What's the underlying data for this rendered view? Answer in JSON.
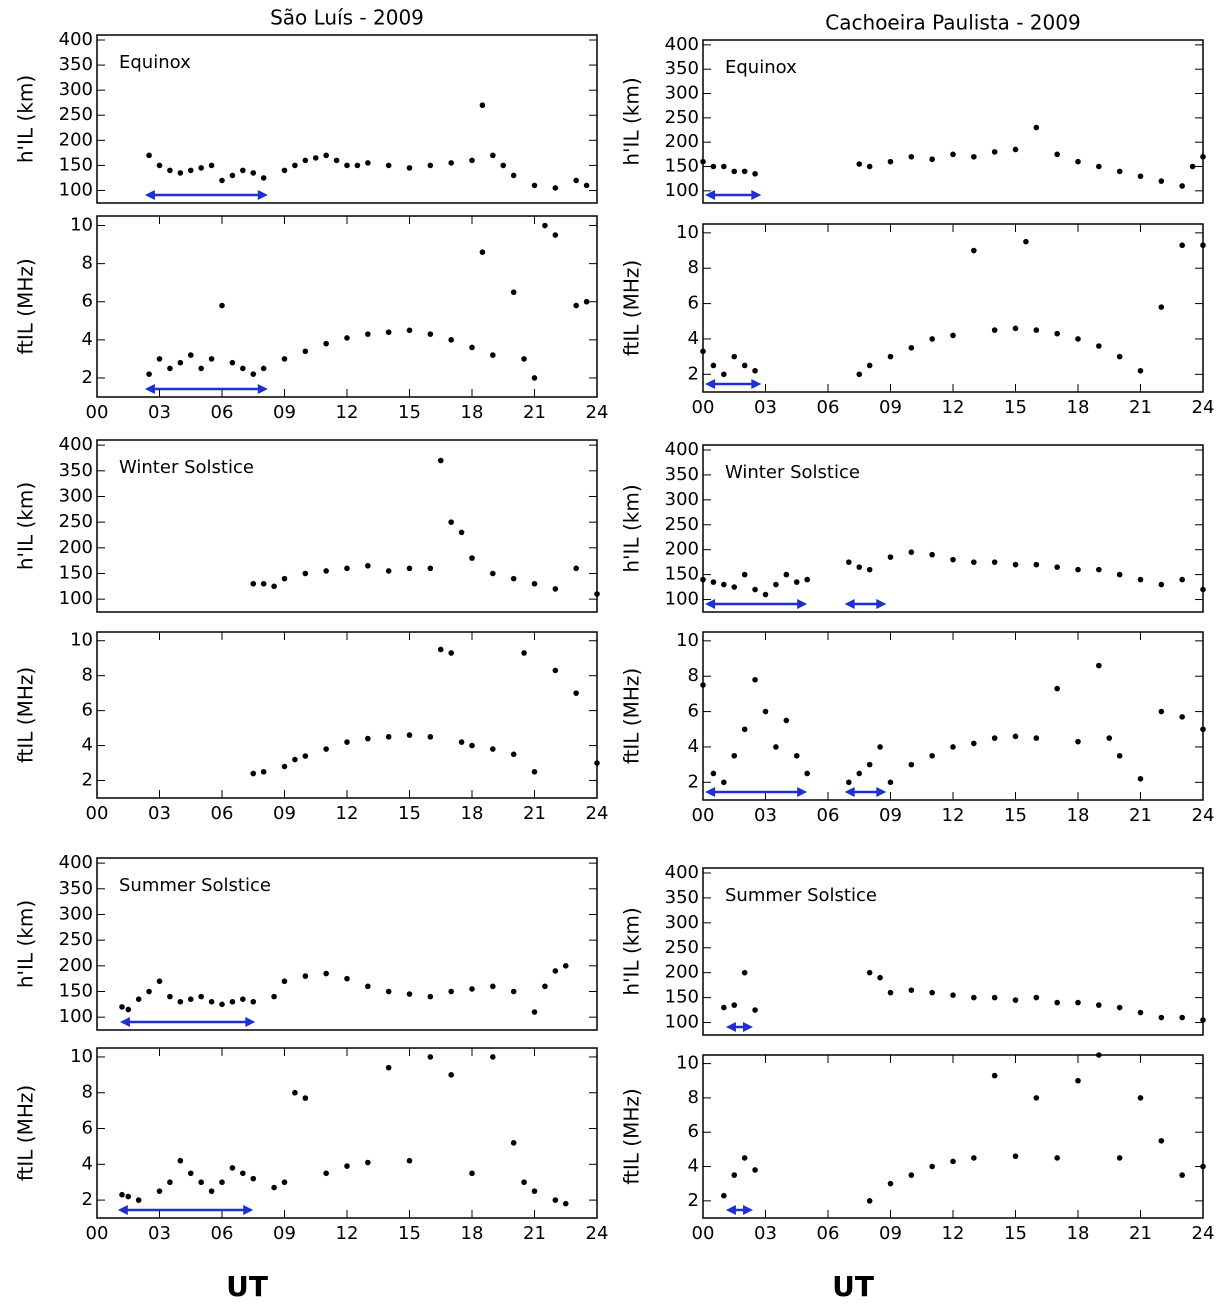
{
  "chart_data": [
    {
      "type": "scatter",
      "title": "São Luís - 2009",
      "ylabel": "h'IL (km)",
      "annotation": "Equinox",
      "x": [
        2.5,
        3,
        3.5,
        4,
        4.5,
        5,
        5.5,
        6,
        6.5,
        7,
        7.5,
        8,
        9,
        9.5,
        10,
        10.5,
        11,
        11.5,
        12,
        12.5,
        13,
        14,
        15,
        16,
        17,
        18,
        18.5,
        19,
        19.5,
        20,
        21,
        22,
        23,
        23.5
      ],
      "values": [
        170,
        150,
        140,
        135,
        140,
        145,
        150,
        120,
        130,
        140,
        135,
        125,
        140,
        150,
        160,
        165,
        170,
        160,
        150,
        150,
        155,
        150,
        145,
        150,
        155,
        160,
        270,
        170,
        150,
        130,
        110,
        105,
        120,
        110
      ],
      "ranges": [
        {
          "start": 2.3,
          "end": 8.2
        }
      ],
      "xlim": [
        0,
        24
      ],
      "ylim": [
        75,
        410
      ],
      "yticks": [
        100,
        150,
        200,
        250,
        300,
        350,
        400
      ]
    },
    {
      "type": "scatter",
      "ylabel": "ftIL (MHz)",
      "x": [
        2.5,
        3,
        3.5,
        4,
        4.5,
        5,
        5.5,
        6,
        6.5,
        7,
        7.5,
        8,
        9,
        10,
        11,
        12,
        13,
        14,
        15,
        16,
        17,
        18,
        18.5,
        19,
        20,
        20.5,
        21,
        21.5,
        22,
        23,
        23.5
      ],
      "values": [
        2.2,
        3,
        2.5,
        2.8,
        3.2,
        2.5,
        3,
        5.8,
        2.8,
        2.5,
        2.2,
        2.5,
        3,
        3.4,
        3.8,
        4.1,
        4.3,
        4.4,
        4.5,
        4.3,
        4,
        3.6,
        8.6,
        3.2,
        6.5,
        3,
        2,
        10,
        9.5,
        5.8,
        6
      ],
      "ranges": [
        {
          "start": 2.3,
          "end": 8.2
        }
      ],
      "xlim": [
        0,
        24
      ],
      "ylim": [
        1,
        10.5
      ],
      "yticks": [
        2,
        4,
        6,
        8,
        10
      ],
      "xticks": [
        {
          "value": 0,
          "label": "00"
        },
        {
          "value": 3,
          "label": "03"
        },
        {
          "value": 6,
          "label": "06"
        },
        {
          "value": 9,
          "label": "09"
        },
        12,
        15,
        18,
        21,
        24
      ]
    },
    {
      "type": "scatter",
      "title": "Cachoeira Paulista - 2009",
      "ylabel": "h'IL (km)",
      "annotation": "Equinox",
      "x": [
        0,
        0.5,
        1,
        1.5,
        2,
        2.5,
        7.5,
        8,
        9,
        10,
        11,
        12,
        13,
        14,
        15,
        16,
        17,
        18,
        19,
        20,
        21,
        22,
        23,
        23.5,
        24
      ],
      "values": [
        160,
        150,
        150,
        140,
        140,
        135,
        155,
        150,
        160,
        170,
        165,
        175,
        170,
        180,
        185,
        230,
        175,
        160,
        150,
        140,
        130,
        120,
        110,
        150,
        170
      ],
      "ranges": [
        {
          "start": 0.1,
          "end": 2.8
        }
      ],
      "xlim": [
        0,
        24
      ],
      "ylim": [
        75,
        410
      ],
      "yticks": [
        100,
        150,
        200,
        250,
        300,
        350,
        400
      ]
    },
    {
      "type": "scatter",
      "ylabel": "ftIL (MHz)",
      "x": [
        0,
        0.5,
        1,
        1.5,
        2,
        2.5,
        7.5,
        8,
        9,
        10,
        11,
        12,
        13,
        14,
        15,
        16,
        17,
        18,
        19,
        20,
        21,
        22,
        23,
        24,
        15.5
      ],
      "values": [
        3.3,
        2.5,
        2,
        3,
        2.5,
        2.2,
        2,
        2.5,
        3,
        3.5,
        4,
        4.2,
        9,
        4.5,
        4.6,
        4.5,
        4.3,
        4,
        3.6,
        3,
        2.2,
        5.8,
        9.3,
        9.3,
        9.5
      ],
      "ranges": [
        {
          "start": 0.1,
          "end": 2.8
        }
      ],
      "xlim": [
        0,
        24
      ],
      "ylim": [
        1,
        10.5
      ],
      "yticks": [
        2,
        4,
        6,
        8,
        10
      ],
      "xticks": [
        {
          "value": 0,
          "label": "00"
        },
        {
          "value": 3,
          "label": "03"
        },
        {
          "value": 6,
          "label": "06"
        },
        {
          "value": 9,
          "label": "09"
        },
        12,
        15,
        18,
        21,
        24
      ]
    },
    {
      "type": "scatter",
      "ylabel": "h'IL (km)",
      "annotation": "Winter Solstice",
      "x": [
        7.5,
        8,
        8.5,
        9,
        10,
        11,
        12,
        13,
        14,
        15,
        16,
        16.5,
        17,
        17.5,
        18,
        19,
        20,
        21,
        22,
        23,
        24
      ],
      "values": [
        130,
        130,
        125,
        140,
        150,
        155,
        160,
        165,
        155,
        160,
        160,
        370,
        250,
        230,
        180,
        150,
        140,
        130,
        120,
        160,
        110
      ],
      "ranges": [],
      "xlim": [
        0,
        24
      ],
      "ylim": [
        75,
        410
      ],
      "yticks": [
        100,
        150,
        200,
        250,
        300,
        350,
        400
      ]
    },
    {
      "type": "scatter",
      "ylabel": "ftIL (MHz)",
      "x": [
        7.5,
        8,
        9,
        9.5,
        10,
        11,
        12,
        13,
        14,
        15,
        16,
        16.5,
        17,
        17.5,
        18,
        19,
        20,
        20.5,
        21,
        22,
        23,
        24
      ],
      "values": [
        2.4,
        2.5,
        2.8,
        3.2,
        3.4,
        3.8,
        4.2,
        4.4,
        4.5,
        4.6,
        4.5,
        9.5,
        9.3,
        4.2,
        4,
        3.8,
        3.5,
        9.3,
        2.5,
        8.3,
        7,
        3
      ],
      "ranges": [],
      "xlim": [
        0,
        24
      ],
      "ylim": [
        1,
        10.5
      ],
      "yticks": [
        2,
        4,
        6,
        8,
        10
      ],
      "xticks": [
        {
          "value": 0,
          "label": "00"
        },
        {
          "value": 3,
          "label": "03"
        },
        {
          "value": 6,
          "label": "06"
        },
        {
          "value": 9,
          "label": "09"
        },
        12,
        15,
        18,
        21,
        24
      ]
    },
    {
      "type": "scatter",
      "ylabel": "h'IL (km)",
      "annotation": "Winter Solstice",
      "x": [
        0,
        0.5,
        1,
        1.5,
        2,
        2.5,
        3,
        3.5,
        4,
        4.5,
        5,
        7,
        7.5,
        8,
        9,
        10,
        11,
        12,
        13,
        14,
        15,
        16,
        17,
        18,
        19,
        20,
        21,
        22,
        23,
        24
      ],
      "values": [
        140,
        135,
        130,
        125,
        150,
        120,
        110,
        130,
        150,
        135,
        140,
        175,
        165,
        160,
        185,
        195,
        190,
        180,
        175,
        175,
        170,
        170,
        165,
        160,
        160,
        150,
        140,
        130,
        140,
        120
      ],
      "ranges": [
        {
          "start": 0.1,
          "end": 5
        },
        {
          "start": 6.8,
          "end": 8.8
        }
      ],
      "xlim": [
        0,
        24
      ],
      "ylim": [
        75,
        410
      ],
      "yticks": [
        100,
        150,
        200,
        250,
        300,
        350,
        400
      ]
    },
    {
      "type": "scatter",
      "ylabel": "ftIL (MHz)",
      "x": [
        0,
        0.5,
        1,
        1.5,
        2,
        2.5,
        3,
        3.5,
        4,
        4.5,
        5,
        7,
        7.5,
        8,
        8.5,
        9,
        10,
        11,
        12,
        13,
        14,
        15,
        16,
        17,
        18,
        19,
        19.5,
        20,
        21,
        22,
        23,
        24
      ],
      "values": [
        7.5,
        2.5,
        2,
        3.5,
        5,
        7.8,
        6,
        4,
        5.5,
        3.5,
        2.5,
        2,
        2.5,
        3,
        4,
        2,
        3,
        3.5,
        4,
        4.2,
        4.5,
        4.6,
        4.5,
        7.3,
        4.3,
        8.6,
        4.5,
        3.5,
        2.2,
        6,
        5.7,
        5
      ],
      "ranges": [
        {
          "start": 0.1,
          "end": 5
        },
        {
          "start": 6.8,
          "end": 8.8
        }
      ],
      "xlim": [
        0,
        24
      ],
      "ylim": [
        1,
        10.5
      ],
      "yticks": [
        2,
        4,
        6,
        8,
        10
      ],
      "xticks": [
        {
          "value": 0,
          "label": "00"
        },
        {
          "value": 3,
          "label": "03"
        },
        {
          "value": 6,
          "label": "06"
        },
        {
          "value": 9,
          "label": "09"
        },
        12,
        15,
        18,
        21,
        24
      ]
    },
    {
      "type": "scatter",
      "ylabel": "h'IL (km)",
      "annotation": "Summer Solstice",
      "x": [
        1.2,
        1.5,
        2,
        2.5,
        3,
        3.5,
        4,
        4.5,
        5,
        5.5,
        6,
        6.5,
        7,
        7.5,
        8.5,
        9,
        10,
        11,
        12,
        13,
        14,
        15,
        16,
        17,
        18,
        19,
        20,
        21,
        21.5,
        22,
        22.5
      ],
      "values": [
        120,
        115,
        135,
        150,
        170,
        140,
        130,
        135,
        140,
        130,
        125,
        130,
        135,
        130,
        140,
        170,
        180,
        185,
        175,
        160,
        150,
        145,
        140,
        150,
        155,
        160,
        150,
        110,
        160,
        190,
        200
      ],
      "ranges": [
        {
          "start": 1.1,
          "end": 7.6
        }
      ],
      "xlim": [
        0,
        24
      ],
      "ylim": [
        75,
        410
      ],
      "yticks": [
        100,
        150,
        200,
        250,
        300,
        350,
        400
      ]
    },
    {
      "type": "scatter",
      "ylabel": "ftIL (MHz)",
      "xlabel": "UT",
      "x": [
        1.2,
        1.5,
        2,
        3,
        3.5,
        4,
        4.5,
        5,
        5.5,
        6,
        6.5,
        7,
        7.5,
        8.5,
        9,
        9.5,
        10,
        11,
        12,
        13,
        14,
        15,
        16,
        17,
        18,
        19,
        20,
        20.5,
        21,
        22,
        22.5
      ],
      "values": [
        2.3,
        2.2,
        2,
        2.5,
        3,
        4.2,
        3.5,
        3,
        2.5,
        3,
        3.8,
        3.5,
        3.2,
        2.7,
        3,
        8,
        7.7,
        3.5,
        3.9,
        4.1,
        9.4,
        4.2,
        10,
        9,
        3.5,
        10,
        5.2,
        3,
        2.5,
        2,
        1.8
      ],
      "ranges": [
        {
          "start": 1,
          "end": 7.5
        }
      ],
      "xlim": [
        0,
        24
      ],
      "ylim": [
        1,
        10.5
      ],
      "yticks": [
        2,
        4,
        6,
        8,
        10
      ],
      "xticks": [
        {
          "value": 0,
          "label": "00"
        },
        {
          "value": 3,
          "label": "03"
        },
        {
          "value": 6,
          "label": "06"
        },
        {
          "value": 9,
          "label": "09"
        },
        12,
        15,
        18,
        21,
        24
      ]
    },
    {
      "type": "scatter",
      "ylabel": "h'IL (km)",
      "annotation": "Summer Solstice",
      "x": [
        1,
        1.5,
        2,
        2.5,
        8,
        8.5,
        9,
        10,
        11,
        12,
        13,
        14,
        15,
        16,
        17,
        18,
        19,
        20,
        21,
        22,
        23,
        24
      ],
      "values": [
        130,
        135,
        200,
        125,
        200,
        190,
        160,
        165,
        160,
        155,
        150,
        150,
        145,
        150,
        140,
        140,
        135,
        130,
        120,
        110,
        110,
        105
      ],
      "ranges": [
        {
          "start": 1.1,
          "end": 2.4
        }
      ],
      "xlim": [
        0,
        24
      ],
      "ylim": [
        75,
        410
      ],
      "yticks": [
        100,
        150,
        200,
        250,
        300,
        350,
        400
      ]
    },
    {
      "type": "scatter",
      "ylabel": "ftIL (MHz)",
      "xlabel": "UT",
      "x": [
        1,
        1.5,
        2,
        2.5,
        8,
        9,
        10,
        11,
        12,
        13,
        14,
        15,
        16,
        17,
        18,
        19,
        20,
        21,
        22,
        23,
        24
      ],
      "values": [
        2.3,
        3.5,
        4.5,
        3.8,
        2,
        3,
        3.5,
        4,
        4.3,
        4.5,
        9.3,
        4.6,
        8,
        4.5,
        9,
        10.5,
        4.5,
        8,
        5.5,
        3.5,
        4
      ],
      "ranges": [
        {
          "start": 1.1,
          "end": 2.4
        }
      ],
      "xlim": [
        0,
        24
      ],
      "ylim": [
        1,
        10.5
      ],
      "yticks": [
        2,
        4,
        6,
        8,
        10
      ],
      "xticks": [
        {
          "value": 0,
          "label": "00"
        },
        {
          "value": 3,
          "label": "03"
        },
        {
          "value": 6,
          "label": "06"
        },
        {
          "value": 9,
          "label": "09"
        },
        12,
        15,
        18,
        21,
        24
      ]
    }
  ]
}
